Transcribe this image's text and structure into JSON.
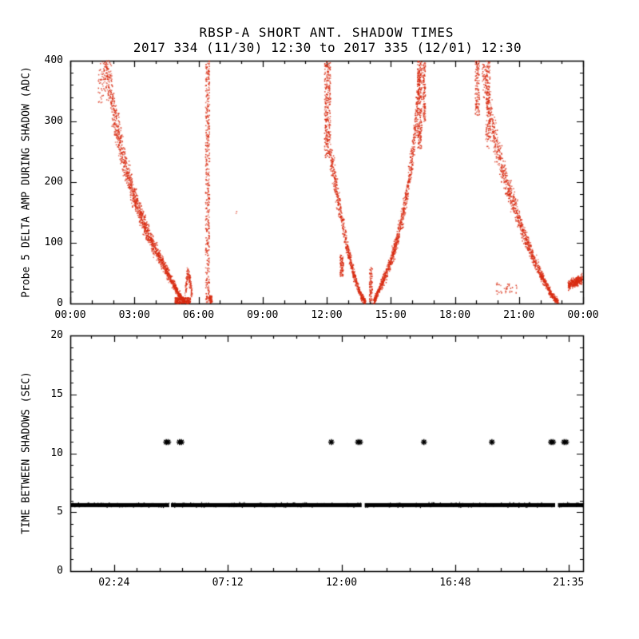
{
  "header": {
    "title": "RBSP-A SHORT ANT. SHADOW TIMES",
    "subtitle": "2017 334 (11/30) 12:30 to 2017 335 (12/01) 12:30"
  },
  "chart_data": [
    {
      "type": "scatter",
      "panel": "top",
      "ylabel": "Probe 5 DELTA AMP DURING SHADOW (ADC)",
      "xlim": [
        0,
        24
      ],
      "ylim": [
        0,
        400
      ],
      "x_ticks": [
        {
          "pos": 0,
          "label": "00:00"
        },
        {
          "pos": 3,
          "label": "03:00"
        },
        {
          "pos": 6,
          "label": "06:00"
        },
        {
          "pos": 9,
          "label": "09:00"
        },
        {
          "pos": 12,
          "label": "12:00"
        },
        {
          "pos": 15,
          "label": "15:00"
        },
        {
          "pos": 18,
          "label": "18:00"
        },
        {
          "pos": 21,
          "label": "21:00"
        },
        {
          "pos": 24,
          "label": "00:00"
        }
      ],
      "x_minor_step": 1,
      "y_ticks": [
        {
          "pos": 0,
          "label": "0"
        },
        {
          "pos": 100,
          "label": "100"
        },
        {
          "pos": 200,
          "label": "200"
        },
        {
          "pos": 300,
          "label": "300"
        },
        {
          "pos": 400,
          "label": "400"
        }
      ],
      "y_minor_step": 20,
      "point_color": "#d92c12",
      "seed": 1334,
      "series": [
        {
          "name": "probe5-delta-amp-scatter",
          "clusters": [
            {
              "type": "strip",
              "n": 45,
              "h": [
                1.3,
                1.62
              ],
              "v": [
                330,
                400
              ]
            },
            {
              "type": "curve",
              "n": 1500,
              "jbase": 5,
              "jslope": 0.09,
              "pts": [
                [
                  1.55,
                  420
                ],
                [
                  1.8,
                  368
                ],
                [
                  2.05,
                  312
                ],
                [
                  2.35,
                  262
                ],
                [
                  2.65,
                  218
                ],
                [
                  2.95,
                  180
                ],
                [
                  3.25,
                  150
                ],
                [
                  3.55,
                  122
                ],
                [
                  3.85,
                  99
                ],
                [
                  4.15,
                  78
                ],
                [
                  4.45,
                  58
                ],
                [
                  4.75,
                  37
                ],
                [
                  5.05,
                  17
                ],
                [
                  5.25,
                  6
                ],
                [
                  5.38,
                  2
                ]
              ]
            },
            {
              "type": "strip",
              "n": 240,
              "h": [
                4.9,
                5.62
              ],
              "v": [
                0,
                10
              ]
            },
            {
              "type": "curve",
              "n": 120,
              "jbase": 8,
              "jslope": 0.08,
              "pts": [
                [
                  5.38,
                  16
                ],
                [
                  5.5,
                  52
                ],
                [
                  5.62,
                  34
                ],
                [
                  5.7,
                  10
                ]
              ]
            },
            {
              "type": "strip",
              "n": 420,
              "h": [
                6.33,
                6.52
              ],
              "v": [
                2,
                400
              ]
            },
            {
              "type": "strip",
              "n": 55,
              "h": [
                6.5,
                6.64
              ],
              "v": [
                1,
                13
              ]
            },
            {
              "type": "strip",
              "n": 2,
              "h": [
                7.74,
                7.8
              ],
              "v": [
                148,
                155
              ]
            },
            {
              "type": "strip",
              "n": 300,
              "h": [
                11.9,
                12.18
              ],
              "v": [
                240,
                400
              ]
            },
            {
              "type": "curve",
              "n": 650,
              "jbase": 5,
              "jslope": 0.09,
              "pts": [
                [
                  12.18,
                  245
                ],
                [
                  12.45,
                  190
                ],
                [
                  12.7,
                  140
                ],
                [
                  12.95,
                  95
                ],
                [
                  13.2,
                  58
                ],
                [
                  13.45,
                  28
                ],
                [
                  13.65,
                  10
                ],
                [
                  13.82,
                  2
                ]
              ]
            },
            {
              "type": "strip",
              "n": 85,
              "h": [
                12.62,
                12.78
              ],
              "v": [
                45,
                80
              ]
            },
            {
              "type": "strip",
              "n": 85,
              "h": [
                14.0,
                14.14
              ],
              "v": [
                1,
                60
              ]
            },
            {
              "type": "curve",
              "n": 900,
              "jbase": 5,
              "jslope": 0.09,
              "pts": [
                [
                  14.2,
                  2
                ],
                [
                  14.5,
                  26
                ],
                [
                  14.85,
                  55
                ],
                [
                  15.2,
                  92
                ],
                [
                  15.5,
                  135
                ],
                [
                  15.8,
                  190
                ],
                [
                  16.05,
                  255
                ],
                [
                  16.25,
                  330
                ],
                [
                  16.38,
                  400
                ]
              ]
            },
            {
              "type": "strip",
              "n": 240,
              "h": [
                16.25,
                16.45
              ],
              "v": [
                255,
                400
              ]
            },
            {
              "type": "strip",
              "n": 110,
              "h": [
                16.5,
                16.62
              ],
              "v": [
                300,
                400
              ]
            },
            {
              "type": "strip",
              "n": 120,
              "h": [
                18.95,
                19.15
              ],
              "v": [
                310,
                400
              ]
            },
            {
              "type": "strip",
              "n": 150,
              "h": [
                19.45,
                19.65
              ],
              "v": [
                255,
                400
              ]
            },
            {
              "type": "curve",
              "n": 1100,
              "jbase": 5,
              "jslope": 0.09,
              "pts": [
                [
                  19.3,
                  390
                ],
                [
                  19.7,
                  300
                ],
                [
                  20.0,
                  250
                ],
                [
                  20.4,
                  200
                ],
                [
                  20.8,
                  158
                ],
                [
                  21.2,
                  118
                ],
                [
                  21.6,
                  82
                ],
                [
                  22.0,
                  50
                ],
                [
                  22.4,
                  22
                ],
                [
                  22.7,
                  6
                ],
                [
                  22.85,
                  1
                ]
              ]
            },
            {
              "type": "strip",
              "n": 36,
              "h": [
                19.9,
                20.9
              ],
              "v": [
                14,
                34
              ]
            },
            {
              "type": "curve",
              "n": 280,
              "jbase": 6,
              "jslope": 0.04,
              "pts": [
                [
                  23.3,
                  30
                ],
                [
                  23.95,
                  40
                ]
              ]
            }
          ]
        }
      ]
    },
    {
      "type": "scatter",
      "panel": "bottom",
      "ylabel": "TIME BETWEEN SHADOWS (SEC)",
      "xlim": [
        0.55,
        22.2
      ],
      "ylim": [
        0,
        20
      ],
      "x_ticks": [
        {
          "pos": 2.4,
          "label": "02:24"
        },
        {
          "pos": 7.2,
          "label": "07:12"
        },
        {
          "pos": 12.0,
          "label": "12:00"
        },
        {
          "pos": 16.8,
          "label": "16:48"
        },
        {
          "pos": 21.583,
          "label": "21:35"
        }
      ],
      "x_minor_step": 0.96,
      "y_ticks": [
        {
          "pos": 0,
          "label": "0"
        },
        {
          "pos": 5,
          "label": "5"
        },
        {
          "pos": 10,
          "label": "10"
        },
        {
          "pos": 15,
          "label": "15"
        },
        {
          "pos": 20,
          "label": "20"
        }
      ],
      "y_minor_step": 1,
      "point_color": "#000000",
      "seed": 335,
      "band": {
        "name": "time-between-shadows-band",
        "value": 5.6,
        "segments": [
          [
            0.55,
            4.72
          ],
          [
            4.8,
            12.85
          ],
          [
            12.98,
            21.02
          ],
          [
            21.14,
            22.2
          ]
        ]
      },
      "markers": {
        "name": "long-gap-asterisks",
        "symbol": "asterisk",
        "value": 10.95,
        "x": [
          4.6,
          4.68,
          5.16,
          5.24,
          11.57,
          12.7,
          12.78,
          15.48,
          18.35,
          20.85,
          20.93,
          21.4,
          21.48
        ]
      }
    }
  ]
}
